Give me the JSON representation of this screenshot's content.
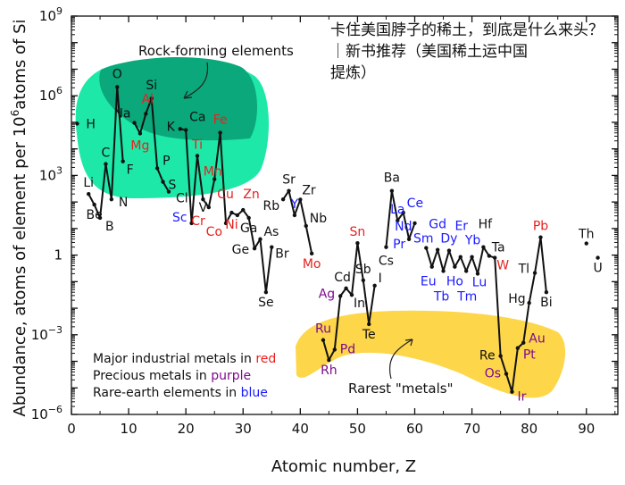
{
  "chart_data": {
    "type": "line",
    "title": "",
    "xlabel": "Atomic number, Z",
    "ylabel": "Abundance, atoms of element per 10^6 atoms of Si",
    "ylabel_parts": {
      "before": "Abundance, atoms of element per 10",
      "sup": "6",
      "after": "atoms of Si"
    },
    "xlim": [
      0,
      95.5
    ],
    "ylim_log10": [
      -6,
      9
    ],
    "x_ticks": [
      "0",
      "10",
      "20",
      "30",
      "40",
      "50",
      "60",
      "70",
      "80",
      "90"
    ],
    "y_ticks": [
      {
        "base": "10",
        "exp": "9"
      },
      {
        "base": "10",
        "exp": "6"
      },
      {
        "base": "10",
        "exp": "3"
      },
      {
        "base": "1",
        "exp": ""
      },
      {
        "base": "10",
        "exp": "−3"
      },
      {
        "base": "10",
        "exp": "−6"
      }
    ],
    "y_scale": "log",
    "colors": {
      "industrial": "#e8201f",
      "precious": "#7d0a8c",
      "rare_earth": "#1a1aff",
      "other": "#111111",
      "line": "#111111",
      "rock_outer": "#1ee8a8",
      "rock_inner": "#0aa87a",
      "rare_blob": "#fdd64a"
    },
    "elements": [
      {
        "z": 1,
        "sym": "H",
        "log": 4.95,
        "cat": "other"
      },
      {
        "z": 3,
        "sym": "Li",
        "log": 2.3,
        "cat": "other"
      },
      {
        "z": 4,
        "sym": "Be",
        "log": 1.9,
        "cat": "other"
      },
      {
        "z": 5,
        "sym": "B",
        "log": 1.4,
        "cat": "other"
      },
      {
        "z": 6,
        "sym": "C",
        "log": 3.43,
        "cat": "other"
      },
      {
        "z": 7,
        "sym": "N",
        "log": 2.1,
        "cat": "other"
      },
      {
        "z": 8,
        "sym": "O",
        "log": 6.33,
        "cat": "other"
      },
      {
        "z": 9,
        "sym": "F",
        "log": 3.53,
        "cat": "other"
      },
      {
        "z": 11,
        "sym": "Na",
        "log": 4.98,
        "cat": "other"
      },
      {
        "z": 12,
        "sym": "Mg",
        "log": 4.58,
        "cat": "industrial"
      },
      {
        "z": 13,
        "sym": "Al",
        "log": 5.32,
        "cat": "industrial"
      },
      {
        "z": 14,
        "sym": "Si",
        "log": 5.9,
        "cat": "other"
      },
      {
        "z": 15,
        "sym": "P",
        "log": 3.27,
        "cat": "other"
      },
      {
        "z": 16,
        "sym": "S",
        "log": 2.76,
        "cat": "other"
      },
      {
        "z": 17,
        "sym": "Cl",
        "log": 2.39,
        "cat": "other"
      },
      {
        "z": 19,
        "sym": "K",
        "log": 4.75,
        "cat": "other"
      },
      {
        "z": 20,
        "sym": "Ca",
        "log": 4.71,
        "cat": "other"
      },
      {
        "z": 21,
        "sym": "Sc",
        "log": 1.2,
        "cat": "rare_earth"
      },
      {
        "z": 22,
        "sym": "Ti",
        "log": 3.74,
        "cat": "industrial"
      },
      {
        "z": 23,
        "sym": "V",
        "log": 2.1,
        "cat": "other"
      },
      {
        "z": 24,
        "sym": "Cr",
        "log": 1.8,
        "cat": "industrial"
      },
      {
        "z": 25,
        "sym": "Mn",
        "log": 2.86,
        "cat": "industrial"
      },
      {
        "z": 26,
        "sym": "Fe",
        "log": 4.61,
        "cat": "industrial"
      },
      {
        "z": 27,
        "sym": "Co",
        "log": 1.2,
        "cat": "industrial"
      },
      {
        "z": 28,
        "sym": "Ni",
        "log": 1.6,
        "cat": "industrial"
      },
      {
        "z": 29,
        "sym": "Cu",
        "log": 1.5,
        "cat": "industrial"
      },
      {
        "z": 30,
        "sym": "Zn",
        "log": 1.7,
        "cat": "industrial"
      },
      {
        "z": 31,
        "sym": "Ga",
        "log": 1.4,
        "cat": "other"
      },
      {
        "z": 32,
        "sym": "Ge",
        "log": 0.25,
        "cat": "other"
      },
      {
        "z": 33,
        "sym": "As",
        "log": 0.6,
        "cat": "other"
      },
      {
        "z": 34,
        "sym": "Se",
        "log": -1.4,
        "cat": "other"
      },
      {
        "z": 35,
        "sym": "Br",
        "log": 0.3,
        "cat": "other"
      },
      {
        "z": 37,
        "sym": "Rb",
        "log": 2.1,
        "cat": "other"
      },
      {
        "z": 38,
        "sym": "Sr",
        "log": 2.42,
        "cat": "other"
      },
      {
        "z": 39,
        "sym": "Y",
        "log": 1.5,
        "cat": "rare_earth"
      },
      {
        "z": 40,
        "sym": "Zr",
        "log": 2.09,
        "cat": "other"
      },
      {
        "z": 41,
        "sym": "Nb",
        "log": 1.1,
        "cat": "other"
      },
      {
        "z": 42,
        "sym": "Mo",
        "log": 0.06,
        "cat": "industrial"
      },
      {
        "z": 44,
        "sym": "Ru",
        "log": -3.2,
        "cat": "precious"
      },
      {
        "z": 45,
        "sym": "Rh",
        "log": -3.95,
        "cat": "precious"
      },
      {
        "z": 46,
        "sym": "Pd",
        "log": -3.56,
        "cat": "precious"
      },
      {
        "z": 47,
        "sym": "Ag",
        "log": -1.54,
        "cat": "precious"
      },
      {
        "z": 48,
        "sym": "Cd",
        "log": -1.25,
        "cat": "other"
      },
      {
        "z": 49,
        "sym": "In",
        "log": -1.5,
        "cat": "other"
      },
      {
        "z": 50,
        "sym": "Sn",
        "log": 0.45,
        "cat": "industrial"
      },
      {
        "z": 51,
        "sym": "Sb",
        "log": -0.95,
        "cat": "other"
      },
      {
        "z": 52,
        "sym": "Te",
        "log": -2.6,
        "cat": "other"
      },
      {
        "z": 53,
        "sym": "I",
        "log": -1.15,
        "cat": "other"
      },
      {
        "z": 55,
        "sym": "Cs",
        "log": 0.3,
        "cat": "other"
      },
      {
        "z": 56,
        "sym": "Ba",
        "log": 2.42,
        "cat": "other"
      },
      {
        "z": 57,
        "sym": "La",
        "log": 1.3,
        "cat": "rare_earth"
      },
      {
        "z": 58,
        "sym": "Ce",
        "log": 1.6,
        "cat": "rare_earth"
      },
      {
        "z": 59,
        "sym": "Pr",
        "log": 0.6,
        "cat": "rare_earth"
      },
      {
        "z": 60,
        "sym": "Nd",
        "log": 1.2,
        "cat": "rare_earth"
      },
      {
        "z": 62,
        "sym": "Sm",
        "log": 0.27,
        "cat": "rare_earth"
      },
      {
        "z": 63,
        "sym": "Eu",
        "log": -0.44,
        "cat": "rare_earth"
      },
      {
        "z": 64,
        "sym": "Gd",
        "log": 0.2,
        "cat": "rare_earth"
      },
      {
        "z": 65,
        "sym": "Tb",
        "log": -0.6,
        "cat": "rare_earth"
      },
      {
        "z": 66,
        "sym": "Dy",
        "log": 0.17,
        "cat": "rare_earth"
      },
      {
        "z": 67,
        "sym": "Ho",
        "log": -0.44,
        "cat": "rare_earth"
      },
      {
        "z": 68,
        "sym": "Er",
        "log": -0.07,
        "cat": "rare_earth"
      },
      {
        "z": 69,
        "sym": "Tm",
        "log": -0.6,
        "cat": "rare_earth"
      },
      {
        "z": 70,
        "sym": "Yb",
        "log": -0.07,
        "cat": "rare_earth"
      },
      {
        "z": 71,
        "sym": "Lu",
        "log": -0.7,
        "cat": "rare_earth"
      },
      {
        "z": 72,
        "sym": "Hf",
        "log": 0.3,
        "cat": "other"
      },
      {
        "z": 73,
        "sym": "Ta",
        "log": -0.03,
        "cat": "other"
      },
      {
        "z": 74,
        "sym": "W",
        "log": -0.1,
        "cat": "industrial"
      },
      {
        "z": 75,
        "sym": "Re",
        "log": -3.8,
        "cat": "other"
      },
      {
        "z": 76,
        "sym": "Os",
        "log": -4.47,
        "cat": "precious"
      },
      {
        "z": 77,
        "sym": "Ir",
        "log": -5.15,
        "cat": "precious"
      },
      {
        "z": 78,
        "sym": "Pt",
        "log": -3.5,
        "cat": "precious"
      },
      {
        "z": 79,
        "sym": "Au",
        "log": -3.3,
        "cat": "precious"
      },
      {
        "z": 80,
        "sym": "Hg",
        "log": -1.8,
        "cat": "other"
      },
      {
        "z": 81,
        "sym": "Tl",
        "log": -0.67,
        "cat": "other"
      },
      {
        "z": 82,
        "sym": "Pb",
        "log": 0.67,
        "cat": "industrial"
      },
      {
        "z": 83,
        "sym": "Bi",
        "log": -1.4,
        "cat": "other"
      },
      {
        "z": 90,
        "sym": "Th",
        "log": 0.44,
        "cat": "other"
      },
      {
        "z": 92,
        "sym": "U",
        "log": -0.1,
        "cat": "other"
      }
    ],
    "annotations": {
      "rock_forming": "Rock-forming elements",
      "rarest_metals": "Rarest \"metals\""
    },
    "legend": {
      "placement": "bottom-left",
      "lines": [
        {
          "prefix": "Major industrial metals in ",
          "word": "red",
          "cat": "industrial"
        },
        {
          "prefix": "Precious metals in ",
          "word": "purple",
          "cat": "precious"
        },
        {
          "prefix": "Rare-earth elements in ",
          "word": "blue",
          "cat": "rare_earth"
        }
      ]
    }
  },
  "overlay": {
    "line1": "卡住美国脖子的稀土，到底是什么来头？ ｜新书推荐（美国稀土运中国",
    "line2": "提炼）"
  }
}
